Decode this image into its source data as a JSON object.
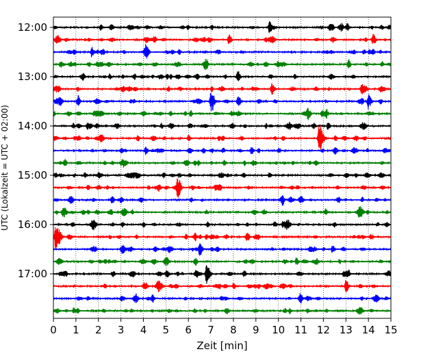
{
  "chart_data": {
    "type": "line",
    "xlabel": "Zeit  [min]",
    "ylabel": "UTC (Lokalzeit = UTC + 02:00)",
    "xlim": [
      0,
      15
    ],
    "x_ticks": [
      "0",
      "1",
      "2",
      "3",
      "4",
      "5",
      "6",
      "7",
      "8",
      "9",
      "10",
      "11",
      "12",
      "13",
      "14",
      "15"
    ],
    "y_tick_labels": [
      {
        "label": "12:00",
        "trace_index": 0
      },
      {
        "label": "13:00",
        "trace_index": 4
      },
      {
        "label": "14:00",
        "trace_index": 8
      },
      {
        "label": "15:00",
        "trace_index": 12
      },
      {
        "label": "16:00",
        "trace_index": 16
      },
      {
        "label": "17:00",
        "trace_index": 20
      }
    ],
    "grid": "vertical dotted at each minute",
    "trace_interval_minutes": 15,
    "trace_colors": [
      "#000000",
      "#ff0000",
      "#0000ff",
      "#008000"
    ],
    "traces": [
      {
        "start": "12:00",
        "events": [
          {
            "t": 9.6,
            "amp": 0.65
          },
          {
            "t": 12.8,
            "amp": 0.45
          },
          {
            "t": 2.1,
            "amp": 0.35
          }
        ]
      },
      {
        "start": "12:15",
        "events": [
          {
            "t": 7.8,
            "amp": 0.55
          },
          {
            "t": 4.5,
            "amp": 0.35
          },
          {
            "t": 14.2,
            "amp": 0.3
          }
        ]
      },
      {
        "start": "12:30",
        "events": [
          {
            "t": 1.7,
            "amp": 0.55
          },
          {
            "t": 4.1,
            "amp": 0.6
          },
          {
            "t": 13.8,
            "amp": 0.3
          }
        ]
      },
      {
        "start": "12:45",
        "events": [
          {
            "t": 13.1,
            "amp": 0.4
          },
          {
            "t": 14.6,
            "amp": 0.3
          }
        ]
      },
      {
        "start": "13:00",
        "events": [
          {
            "t": 8.2,
            "amp": 0.4
          },
          {
            "t": 2.5,
            "amp": 0.3
          }
        ]
      },
      {
        "start": "13:15",
        "events": [
          {
            "t": 9.7,
            "amp": 0.7
          },
          {
            "t": 13.7,
            "amp": 0.55
          },
          {
            "t": 5.1,
            "amp": 0.3
          }
        ]
      },
      {
        "start": "13:30",
        "events": [
          {
            "t": 7.0,
            "amp": 1.0
          },
          {
            "t": 14.0,
            "amp": 0.75
          },
          {
            "t": 1.1,
            "amp": 0.45
          },
          {
            "t": 8.2,
            "amp": 0.3
          }
        ]
      },
      {
        "start": "13:45",
        "events": [
          {
            "t": 11.3,
            "amp": 0.7
          },
          {
            "t": 6.1,
            "amp": 0.35
          }
        ]
      },
      {
        "start": "14:00",
        "events": [
          {
            "t": 12.2,
            "amp": 0.4
          },
          {
            "t": 7.9,
            "amp": 0.35
          },
          {
            "t": 4.8,
            "amp": 0.3
          }
        ]
      },
      {
        "start": "14:15",
        "events": [
          {
            "t": 11.8,
            "amp": 1.5
          },
          {
            "t": 6.0,
            "amp": 0.35
          },
          {
            "t": 10.2,
            "amp": 0.3
          }
        ]
      },
      {
        "start": "14:30",
        "events": [
          {
            "t": 4.1,
            "amp": 0.45
          },
          {
            "t": 8.8,
            "amp": 0.4
          },
          {
            "t": 13.3,
            "amp": 0.3
          }
        ]
      },
      {
        "start": "14:45",
        "events": [
          {
            "t": 0.5,
            "amp": 0.45
          },
          {
            "t": 3.1,
            "amp": 0.3
          }
        ]
      },
      {
        "start": "15:00",
        "events": [
          {
            "t": 1.4,
            "amp": 0.35
          },
          {
            "t": 9.6,
            "amp": 0.35
          },
          {
            "t": 4.9,
            "amp": 0.3
          }
        ]
      },
      {
        "start": "15:15",
        "events": [
          {
            "t": 5.5,
            "amp": 1.0
          },
          {
            "t": 7.4,
            "amp": 0.3
          }
        ]
      },
      {
        "start": "15:30",
        "events": [
          {
            "t": 2.6,
            "amp": 0.3
          },
          {
            "t": 10.2,
            "amp": 0.3
          }
        ]
      },
      {
        "start": "15:45",
        "events": [
          {
            "t": 0.4,
            "amp": 0.35
          },
          {
            "t": 6.8,
            "amp": 0.3
          }
        ]
      },
      {
        "start": "16:00",
        "events": [
          {
            "t": 10.2,
            "amp": 0.35
          },
          {
            "t": 4.0,
            "amp": 0.3
          }
        ]
      },
      {
        "start": "16:15",
        "events": [
          {
            "t": 0.1,
            "amp": 1.4
          },
          {
            "t": 6.3,
            "amp": 0.3
          }
        ]
      },
      {
        "start": "16:30",
        "events": [
          {
            "t": 6.5,
            "amp": 0.7
          },
          {
            "t": 12.4,
            "amp": 0.3
          }
        ]
      },
      {
        "start": "16:45",
        "events": [
          {
            "t": 10.8,
            "amp": 0.45
          },
          {
            "t": 2.3,
            "amp": 0.3
          }
        ]
      },
      {
        "start": "17:00",
        "events": [
          {
            "t": 6.8,
            "amp": 1.1
          },
          {
            "t": 12.9,
            "amp": 0.35
          }
        ]
      },
      {
        "start": "17:15",
        "events": [
          {
            "t": 13.0,
            "amp": 0.7
          },
          {
            "t": 8.0,
            "amp": 0.35
          }
        ]
      },
      {
        "start": "17:30",
        "events": [
          {
            "t": 4.4,
            "amp": 0.3
          },
          {
            "t": 11.0,
            "amp": 0.3
          }
        ]
      },
      {
        "start": "17:45",
        "events": [
          {
            "t": 0.9,
            "amp": 0.35
          },
          {
            "t": 10.5,
            "amp": 0.3
          }
        ]
      }
    ]
  }
}
